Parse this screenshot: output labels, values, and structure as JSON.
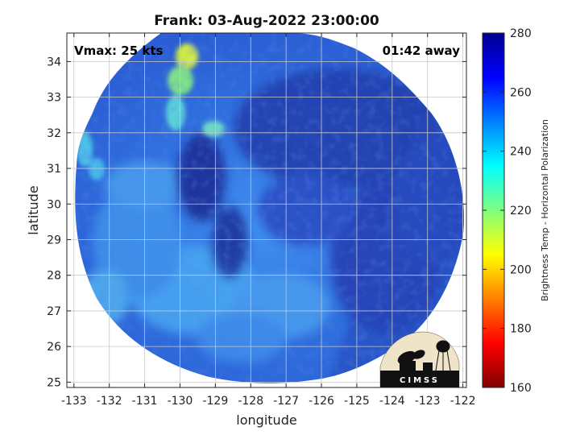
{
  "title": "Frank: 03-Aug-2022 23:00:00",
  "vmax_label": "Vmax: 25 kts",
  "time_label": "01:42 away",
  "xlabel": "longitude",
  "ylabel": "latitude",
  "x_ticks": [
    "-133",
    "-132",
    "-131",
    "-130",
    "-129",
    "-128",
    "-127",
    "-126",
    "-125",
    "-124",
    "-123",
    "-122"
  ],
  "y_ticks": [
    "34",
    "33",
    "32",
    "31",
    "30",
    "29",
    "28",
    "27",
    "26",
    "25"
  ],
  "colorbar": {
    "label": "Brightness Temp - Horizontal Polarization",
    "ticks": [
      "280",
      "260",
      "240",
      "220",
      "200",
      "180",
      "160"
    ],
    "range": [
      160,
      280
    ],
    "colormap": "jet"
  },
  "map": {
    "lon_range": [
      -133.2,
      -121.9
    ],
    "lat_range": [
      24.85,
      34.8
    ],
    "center": [
      -127.5,
      29.7
    ],
    "background_color": "#ffffff",
    "grid": true
  },
  "logo": {
    "text": "CIMSS"
  },
  "colors": {
    "deep_navy": "#1a2a8c",
    "mid_blue": "#2f58cc",
    "bright_blue": "#3b82ea",
    "cyan": "#36c8f0",
    "yellow_green": "#d8ec40"
  }
}
